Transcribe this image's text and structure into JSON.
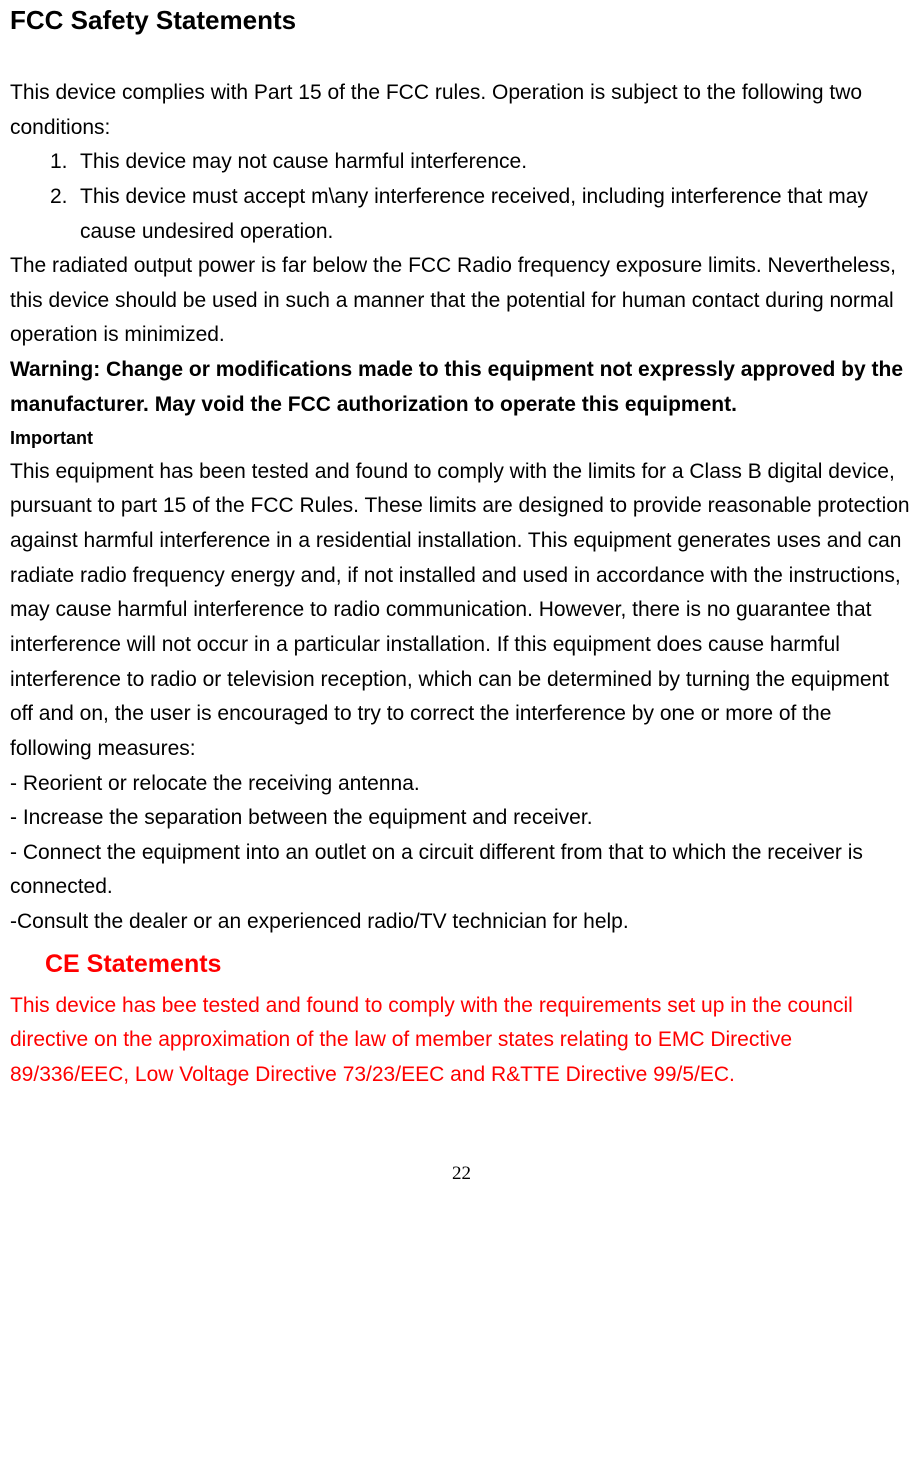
{
  "title": "FCC Safety Statements",
  "intro": "This device complies with Part 15 of the FCC rules. Operation is subject to the following two conditions:",
  "list": {
    "marker1": "1.",
    "item1": "This device may not cause harmful interference.",
    "marker2": "2.",
    "item2": "This device must accept m\\any interference received, including interference that may cause undesired operation."
  },
  "radiated": "The radiated output power is far below the FCC Radio frequency exposure limits. Nevertheless, this device should be used in such a manner that the potential for human contact during normal operation is minimized.",
  "warning": "Warning: Change or modifications made to this equipment not expressly approved by the manufacturer. May void the FCC authorization to operate this equipment.",
  "important_label": "Important",
  "important_body": "This equipment has been tested and found to comply with the limits for a Class B digital device, pursuant to part 15 of the FCC Rules. These limits are designed to provide reasonable protection against harmful interference in a residential installation. This equipment generates uses and can radiate radio frequency energy and, if not installed and used in accordance with the instructions, may cause harmful interference to radio communication. However, there is no guarantee that interference will not occur in a particular installation. If this equipment does cause harmful interference to radio or television reception, which can be determined by turning the equipment off and on, the user is encouraged to try to correct the interference by one or more of the following measures:",
  "measure1": "- Reorient or relocate the receiving antenna.",
  "measure2": "- Increase the separation between the equipment and receiver.",
  "measure3": "- Connect the equipment into an outlet on a circuit different from that to which the receiver is connected.",
  "measure4": "-Consult the dealer or an experienced radio/TV technician for help.",
  "ce_title": "CE Statements",
  "ce_body": "This device has bee tested and found to comply with the requirements set up in the council directive on the approximation of the law of member states relating to EMC Directive 89/336/EEC, Low Voltage Directive 73/23/EEC and R&TTE Directive 99/5/EC.",
  "page_number": "22",
  "colors": {
    "text": "#000000",
    "red": "#ff0000",
    "background": "#ffffff"
  },
  "typography": {
    "heading1_fontsize": 26,
    "heading2_fontsize": 25,
    "body_fontsize": 21,
    "subheading_fontsize": 18,
    "page_number_fontsize": 19
  }
}
